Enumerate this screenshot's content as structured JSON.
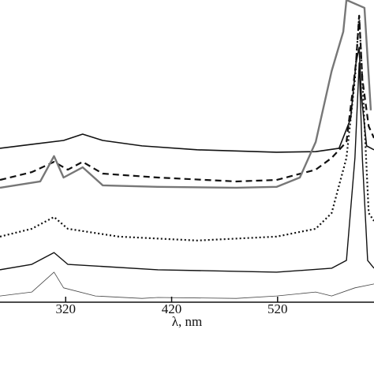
{
  "chart_data": {
    "type": "line",
    "xlabel": "λ, nm",
    "xlim": [
      258,
      611
    ],
    "ylim": [
      0,
      100
    ],
    "xticks": [
      320,
      420,
      520
    ],
    "series": [
      {
        "color": "#111111",
        "style": "solid",
        "width": 1.6,
        "x": [
          258,
          288,
          318,
          336,
          355,
          392,
          444,
          519,
          556,
          578,
          589,
          594,
          597,
          599,
          604,
          611
        ],
        "values": [
          50.8,
          52.1,
          53.4,
          55.5,
          53.4,
          51.6,
          50.3,
          49.5,
          49.7,
          50.8,
          60.7,
          79.1,
          84.3,
          68.6,
          51.6,
          50.3
        ]
      },
      {
        "color": "#111111",
        "style": "dashed",
        "width": 2.2,
        "x": [
          258,
          288,
          309,
          322,
          336,
          355,
          407,
          481,
          519,
          556,
          571,
          585,
          594,
          597,
          600,
          606,
          611
        ],
        "values": [
          40.3,
          42.9,
          46.3,
          43.7,
          46.3,
          42.4,
          41.1,
          39.8,
          40.3,
          43.7,
          47.6,
          52.9,
          79.1,
          94.8,
          73.8,
          58.1,
          54.2
        ]
      },
      {
        "color": "#777777",
        "style": "solid",
        "width": 2.4,
        "x": [
          258,
          296,
          309,
          318,
          336,
          355,
          407,
          481,
          519,
          541,
          556,
          571,
          582,
          585,
          602,
          608
        ],
        "values": [
          37.7,
          39.8,
          48.2,
          41.1,
          44.5,
          38.5,
          38.0,
          37.7,
          38.0,
          41.1,
          52.9,
          76.4,
          89.5,
          100,
          97.4,
          63.4
        ]
      },
      {
        "color": "#111111",
        "style": "dotted",
        "width": 2.2,
        "x": [
          258,
          288,
          309,
          322,
          370,
          444,
          519,
          556,
          571,
          585,
          593,
          597,
          600,
          606,
          611
        ],
        "values": [
          21.5,
          24.1,
          28.0,
          24.1,
          21.5,
          20.2,
          21.5,
          24.1,
          29.3,
          47.6,
          73.8,
          94.8,
          73.8,
          29.3,
          26.7
        ]
      },
      {
        "color": "#111111",
        "style": "solid",
        "width": 1.4,
        "x": [
          258,
          288,
          309,
          322,
          407,
          519,
          571,
          585,
          593,
          597,
          600,
          605,
          611
        ],
        "values": [
          10.5,
          12.3,
          16.2,
          12.3,
          10.5,
          9.7,
          11.0,
          13.6,
          47.6,
          79.1,
          47.6,
          13.6,
          11.0
        ]
      },
      {
        "color": "#444444",
        "style": "solid",
        "width": 0.8,
        "x": [
          258,
          288,
          309,
          318,
          348,
          392,
          407,
          481,
          519,
          556,
          571,
          593,
          611
        ],
        "values": [
          1.8,
          3.1,
          9.7,
          4.5,
          1.8,
          1.0,
          1.3,
          1.0,
          1.8,
          3.1,
          1.8,
          4.5,
          5.8
        ]
      }
    ]
  }
}
